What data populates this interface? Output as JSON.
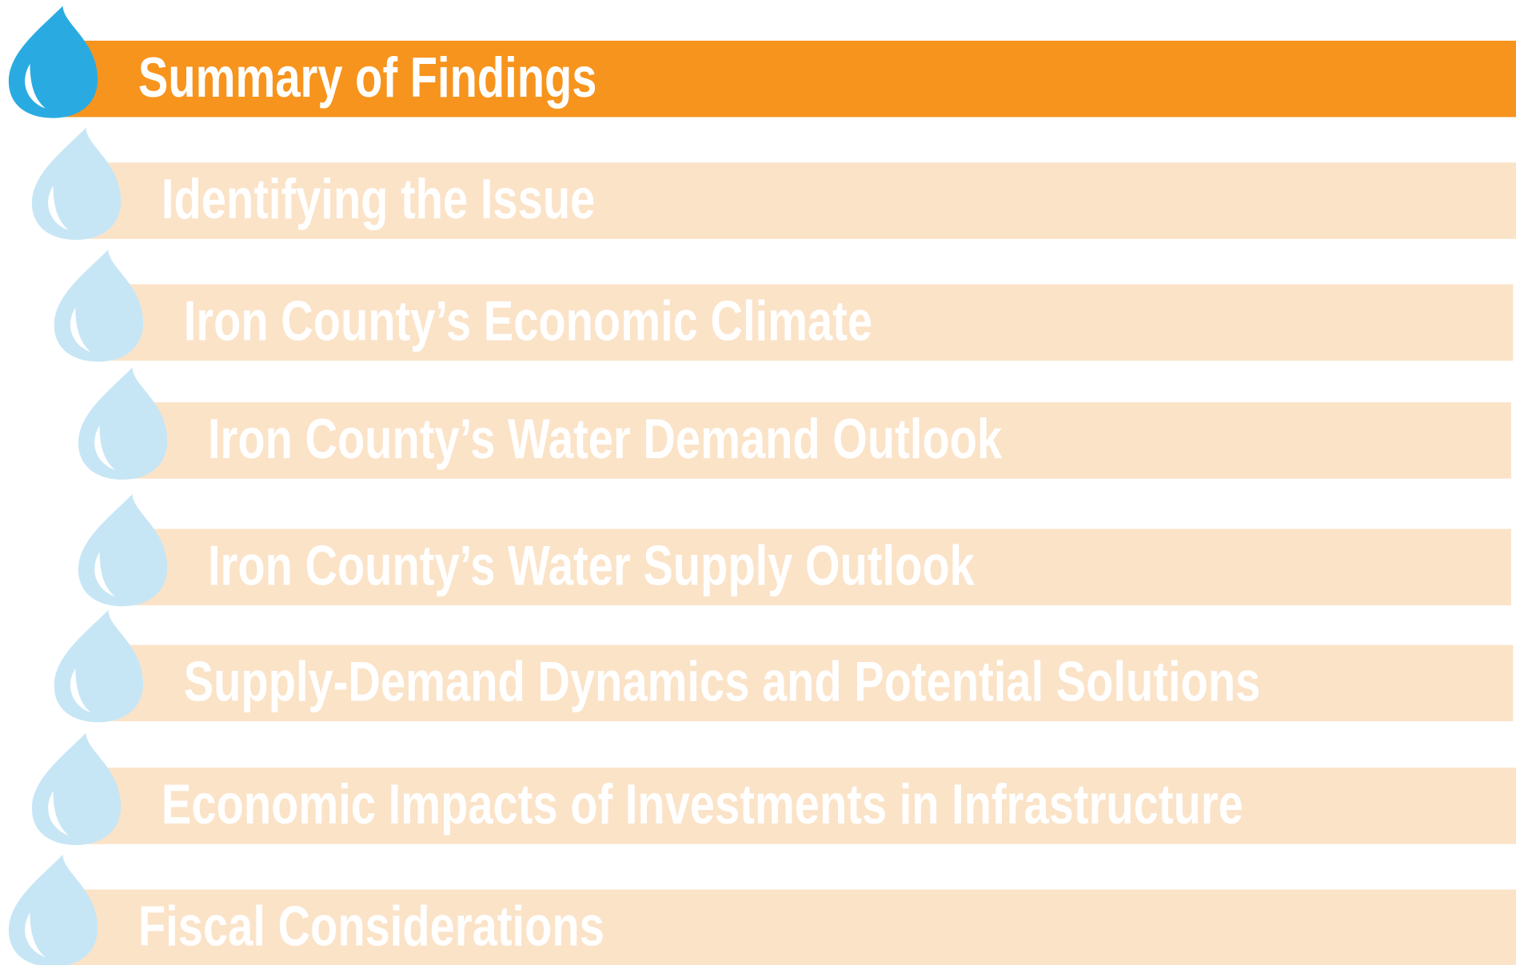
{
  "menu": {
    "items": [
      "Summary of Findings",
      "Identifying the Issue",
      "Iron County’s Economic Climate",
      "Iron County’s Water Demand Outlook",
      "Iron County’s Water Supply Outlook",
      "Supply-Demand Dynamics and Potential Solutions",
      "Economic Impacts of Investments in Infrastructure",
      "Fiscal Considerations"
    ],
    "active": 0,
    "active_bar_color": "#f7941d",
    "active_drop_color": "#29abe2",
    "bar_color": "#fbe3c8",
    "drop_color": "#c7e6f5"
  }
}
